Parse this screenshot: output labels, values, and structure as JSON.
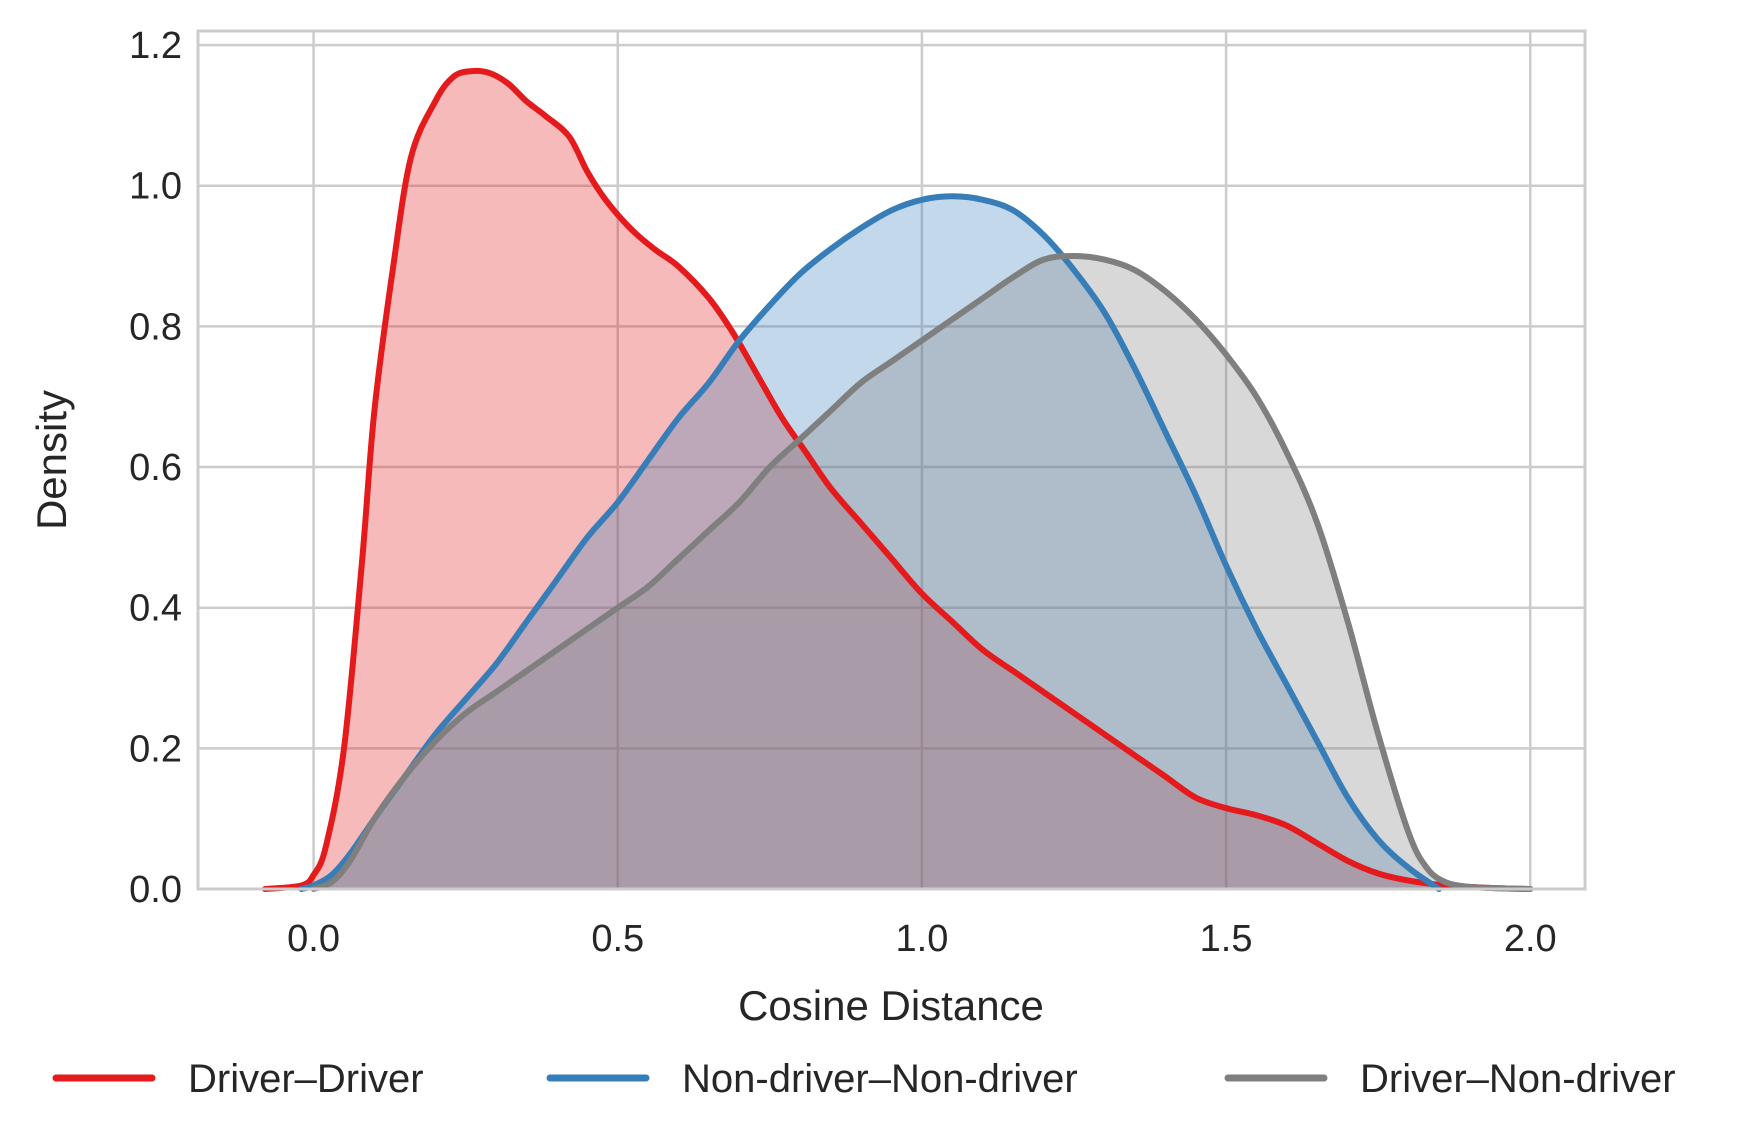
{
  "chart_data": {
    "type": "area",
    "title": "",
    "xlabel": "Cosine Distance",
    "ylabel": "Density",
    "xlim": [
      -0.19,
      2.09
    ],
    "ylim": [
      0,
      1.22
    ],
    "xticks": [
      0.0,
      0.5,
      1.0,
      1.5,
      2.0
    ],
    "xtick_labels": [
      "0.0",
      "0.5",
      "1.0",
      "1.5",
      "2.0"
    ],
    "yticks": [
      0.0,
      0.2,
      0.4,
      0.6,
      0.8,
      1.0,
      1.2
    ],
    "ytick_labels": [
      "0.0",
      "0.2",
      "0.4",
      "0.6",
      "0.8",
      "1.0",
      "1.2"
    ],
    "grid": true,
    "legend_position": "bottom-center",
    "series": [
      {
        "name": "Driver–Driver",
        "color": "#e41a1c",
        "fill_opacity": 0.3,
        "x": [
          -0.08,
          -0.02,
          0.0,
          0.02,
          0.05,
          0.08,
          0.1,
          0.13,
          0.16,
          0.2,
          0.23,
          0.26,
          0.29,
          0.32,
          0.35,
          0.38,
          0.42,
          0.45,
          0.48,
          0.52,
          0.56,
          0.6,
          0.65,
          0.69,
          0.73,
          0.77,
          0.81,
          0.85,
          0.9,
          0.95,
          1.0,
          1.05,
          1.1,
          1.15,
          1.2,
          1.25,
          1.3,
          1.35,
          1.4,
          1.45,
          1.5,
          1.55,
          1.6,
          1.65,
          1.7,
          1.75,
          1.8,
          1.85,
          1.9,
          1.95,
          2.0
        ],
        "y": [
          0.0,
          0.005,
          0.02,
          0.06,
          0.2,
          0.47,
          0.68,
          0.88,
          1.04,
          1.12,
          1.155,
          1.163,
          1.16,
          1.145,
          1.12,
          1.1,
          1.07,
          1.02,
          0.98,
          0.94,
          0.91,
          0.885,
          0.84,
          0.79,
          0.73,
          0.67,
          0.62,
          0.57,
          0.52,
          0.47,
          0.42,
          0.38,
          0.34,
          0.31,
          0.28,
          0.25,
          0.22,
          0.19,
          0.16,
          0.13,
          0.115,
          0.105,
          0.09,
          0.065,
          0.04,
          0.022,
          0.012,
          0.006,
          0.003,
          0.001,
          0.0
        ]
      },
      {
        "name": "Non-driver–Non-driver",
        "color": "#377eb8",
        "fill_opacity": 0.3,
        "x": [
          -0.02,
          0.0,
          0.03,
          0.06,
          0.1,
          0.15,
          0.2,
          0.25,
          0.3,
          0.35,
          0.4,
          0.45,
          0.5,
          0.55,
          0.6,
          0.65,
          0.7,
          0.75,
          0.8,
          0.85,
          0.9,
          0.95,
          1.0,
          1.05,
          1.1,
          1.15,
          1.2,
          1.25,
          1.3,
          1.35,
          1.4,
          1.45,
          1.5,
          1.55,
          1.6,
          1.65,
          1.7,
          1.75,
          1.8,
          1.85
        ],
        "y": [
          0.0,
          0.005,
          0.02,
          0.05,
          0.1,
          0.16,
          0.22,
          0.27,
          0.32,
          0.38,
          0.44,
          0.5,
          0.55,
          0.61,
          0.67,
          0.72,
          0.78,
          0.83,
          0.875,
          0.91,
          0.94,
          0.965,
          0.98,
          0.985,
          0.98,
          0.965,
          0.93,
          0.88,
          0.82,
          0.74,
          0.65,
          0.56,
          0.46,
          0.37,
          0.29,
          0.21,
          0.13,
          0.07,
          0.03,
          0.0
        ]
      },
      {
        "name": "Driver–Non-driver",
        "color": "#7f7f7f",
        "fill_opacity": 0.3,
        "x": [
          0.0,
          0.03,
          0.06,
          0.1,
          0.15,
          0.2,
          0.25,
          0.3,
          0.35,
          0.4,
          0.45,
          0.5,
          0.55,
          0.6,
          0.65,
          0.7,
          0.75,
          0.8,
          0.85,
          0.9,
          0.95,
          1.0,
          1.05,
          1.1,
          1.15,
          1.2,
          1.25,
          1.3,
          1.35,
          1.4,
          1.45,
          1.5,
          1.55,
          1.6,
          1.65,
          1.7,
          1.75,
          1.8,
          1.83,
          1.86,
          1.9,
          1.95,
          2.0
        ],
        "y": [
          0.0,
          0.01,
          0.04,
          0.1,
          0.16,
          0.21,
          0.25,
          0.28,
          0.31,
          0.34,
          0.37,
          0.4,
          0.43,
          0.47,
          0.51,
          0.55,
          0.6,
          0.64,
          0.68,
          0.72,
          0.75,
          0.78,
          0.81,
          0.84,
          0.87,
          0.895,
          0.9,
          0.895,
          0.88,
          0.85,
          0.81,
          0.76,
          0.7,
          0.62,
          0.52,
          0.38,
          0.22,
          0.08,
          0.03,
          0.01,
          0.003,
          0.001,
          0.0
        ]
      }
    ]
  }
}
